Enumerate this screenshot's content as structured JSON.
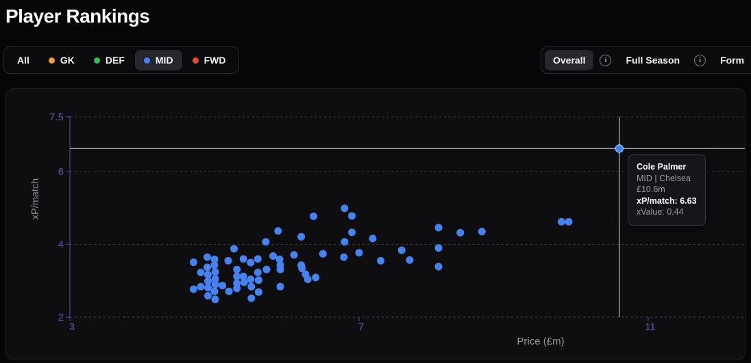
{
  "header": {
    "title": "Player Rankings"
  },
  "filters": {
    "items": [
      {
        "label": "All",
        "color": null,
        "selected": false
      },
      {
        "label": "GK",
        "color": "#f0a12b",
        "selected": false
      },
      {
        "label": "DEF",
        "color": "#2fbe54",
        "selected": false
      },
      {
        "label": "MID",
        "color": "#4583f1",
        "selected": true
      },
      {
        "label": "FWD",
        "color": "#e84a42",
        "selected": false
      }
    ]
  },
  "tabs": {
    "info_icon_glyph": "i",
    "items": [
      {
        "label": "Overall",
        "selected": true
      },
      {
        "label": "Full Season",
        "selected": false
      },
      {
        "label": "Form",
        "selected": false
      }
    ]
  },
  "tooltip": {
    "name": "Cole Palmer",
    "meta": "MID | Chelsea",
    "price": "£10.6m",
    "xp_line": "xP/match: 6.63",
    "xvalue_line": "xValue: 0.44"
  },
  "chart_data": {
    "type": "scatter",
    "title": "",
    "xlabel": "Price (£m)",
    "ylabel": "xP/match",
    "xlim": [
      3,
      11.35
    ],
    "ylim": [
      2,
      7.5
    ],
    "xticks": [
      3,
      7,
      11
    ],
    "yticks": [
      7.5,
      6,
      4,
      2
    ],
    "grid": "horizontal dashed",
    "legend_position": "none",
    "series": [
      {
        "name": "MID",
        "color": "#4583f1",
        "points": [
          [
            4.71,
            3.51
          ],
          [
            4.81,
            3.23
          ],
          [
            4.9,
            3.65
          ],
          [
            4.9,
            3.37
          ],
          [
            4.91,
            3.17
          ],
          [
            4.91,
            2.99
          ],
          [
            4.91,
            2.81
          ],
          [
            4.91,
            2.59
          ],
          [
            4.81,
            2.84
          ],
          [
            4.71,
            2.77
          ],
          [
            5.0,
            3.59
          ],
          [
            5.0,
            3.43
          ],
          [
            5.01,
            3.24
          ],
          [
            5.01,
            3.05
          ],
          [
            5.01,
            2.9
          ],
          [
            5.0,
            2.71
          ],
          [
            5.01,
            2.49
          ],
          [
            5.11,
            2.87
          ],
          [
            5.19,
            3.55
          ],
          [
            5.2,
            2.71
          ],
          [
            5.27,
            3.88
          ],
          [
            5.31,
            3.31
          ],
          [
            5.31,
            3.12
          ],
          [
            5.31,
            2.93
          ],
          [
            5.31,
            2.79
          ],
          [
            5.4,
            3.6
          ],
          [
            5.4,
            3.12
          ],
          [
            5.41,
            2.96
          ],
          [
            5.5,
            3.5
          ],
          [
            5.5,
            3.04
          ],
          [
            5.51,
            2.84
          ],
          [
            5.51,
            2.52
          ],
          [
            5.6,
            3.6
          ],
          [
            5.6,
            3.23
          ],
          [
            5.61,
            3.02
          ],
          [
            5.61,
            2.69
          ],
          [
            5.71,
            4.07
          ],
          [
            5.72,
            3.31
          ],
          [
            5.81,
            3.68
          ],
          [
            5.88,
            4.37
          ],
          [
            5.9,
            3.59
          ],
          [
            5.91,
            3.43
          ],
          [
            5.91,
            3.31
          ],
          [
            5.91,
            2.84
          ],
          [
            6.1,
            3.71
          ],
          [
            6.2,
            4.21
          ],
          [
            6.2,
            3.43
          ],
          [
            6.21,
            3.34
          ],
          [
            6.26,
            3.18
          ],
          [
            6.29,
            3.04
          ],
          [
            6.37,
            4.77
          ],
          [
            6.4,
            3.09
          ],
          [
            6.5,
            3.74
          ],
          [
            6.8,
            4.99
          ],
          [
            6.9,
            4.78
          ],
          [
            6.9,
            4.33
          ],
          [
            6.8,
            4.07
          ],
          [
            6.79,
            3.65
          ],
          [
            7.0,
            3.77
          ],
          [
            7.19,
            4.16
          ],
          [
            7.3,
            3.55
          ],
          [
            7.59,
            3.84
          ],
          [
            7.7,
            3.57
          ],
          [
            8.1,
            4.46
          ],
          [
            8.1,
            3.9
          ],
          [
            8.1,
            3.39
          ],
          [
            8.4,
            4.32
          ],
          [
            8.7,
            4.35
          ],
          [
            9.8,
            4.62
          ],
          [
            9.9,
            4.62
          ]
        ]
      }
    ],
    "highlight_point": {
      "player": "Cole Palmer",
      "position": "MID",
      "team": "Chelsea",
      "price": 10.6,
      "xp_per_match": 6.63,
      "x_value": 0.44
    },
    "colors": {
      "point": "#4583f1",
      "point_highlight_ring": "#8ab1f8",
      "axis": "#52408c",
      "tick_label": "#6a54ae",
      "grid": "#3f3f45",
      "axis_title": "#8a8a90",
      "crosshair": "#a6a6ac"
    }
  }
}
